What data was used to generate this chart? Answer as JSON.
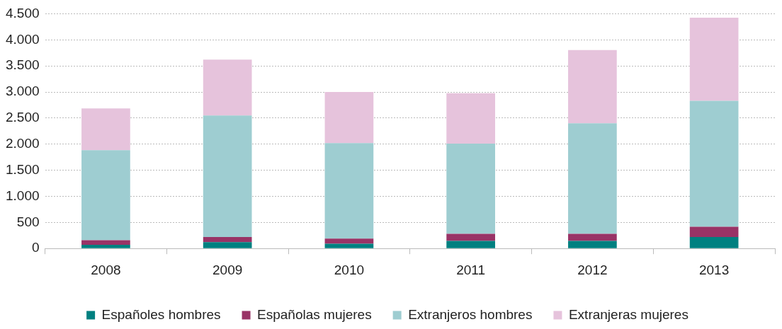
{
  "chart_data": {
    "type": "bar",
    "stacked": true,
    "categories": [
      "2008",
      "2009",
      "2010",
      "2011",
      "2012",
      "2013"
    ],
    "series": [
      {
        "name": "Españoles hombres",
        "color": "#008080",
        "values": [
          70,
          120,
          90,
          145,
          145,
          220
        ]
      },
      {
        "name": "Españolas mujeres",
        "color": "#993366",
        "values": [
          90,
          100,
          100,
          135,
          135,
          195
        ]
      },
      {
        "name": "Extranjeros hombres",
        "color": "#9ecdd1",
        "values": [
          1725,
          2330,
          1830,
          1730,
          2120,
          2415
        ]
      },
      {
        "name": "Extranjeras mujeres",
        "color": "#e6c3dc",
        "values": [
          800,
          1070,
          980,
          965,
          1405,
          1595
        ]
      }
    ],
    "ylim": [
      0,
      4500
    ],
    "yticks": [
      0,
      500,
      {
        "value": 1000,
        "label": "1.000"
      },
      {
        "value": 1500,
        "label": "1.500"
      },
      {
        "value": 2000,
        "label": "2.000"
      },
      {
        "value": 2500,
        "label": "2.500"
      },
      {
        "value": 3000,
        "label": "3.000"
      },
      {
        "value": 3500,
        "label": "3.500"
      },
      {
        "value": 4000,
        "label": "4.000"
      },
      {
        "value": 4500,
        "label": "4.500"
      }
    ],
    "grid": "y",
    "legend": "bottom"
  }
}
